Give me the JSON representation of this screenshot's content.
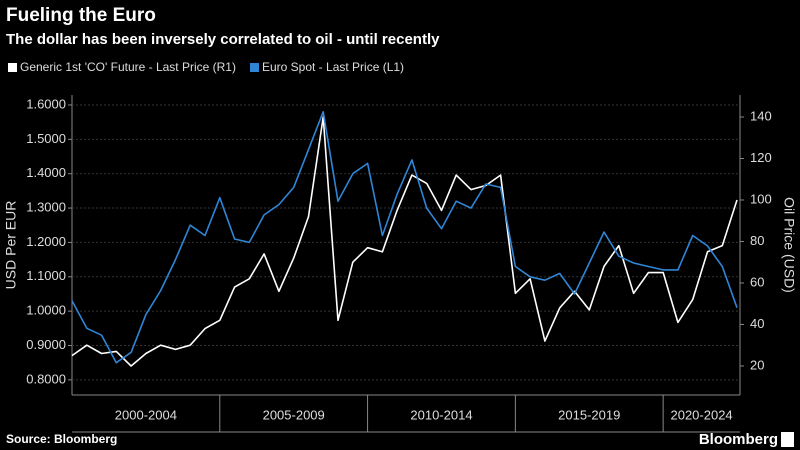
{
  "chart_data": {
    "type": "line",
    "title": "Fueling the Euro",
    "subtitle": "The dollar has been inversely correlated to oil - until recently",
    "y_label": "USD Per EUR",
    "y2_label": "Oil Price (USD)",
    "source": "Source: Bloomberg",
    "brand": "Bloomberg",
    "x": [
      2000.0,
      2000.5,
      2001.0,
      2001.5,
      2002.0,
      2002.5,
      2003.0,
      2003.5,
      2004.0,
      2004.5,
      2005.0,
      2005.5,
      2006.0,
      2006.5,
      2007.0,
      2007.5,
      2008.0,
      2008.5,
      2009.0,
      2009.5,
      2010.0,
      2010.5,
      2011.0,
      2011.5,
      2012.0,
      2012.5,
      2013.0,
      2013.5,
      2014.0,
      2014.5,
      2015.0,
      2015.5,
      2016.0,
      2016.5,
      2017.0,
      2017.5,
      2018.0,
      2018.5,
      2019.0,
      2019.5,
      2020.0,
      2020.5,
      2021.0,
      2021.5,
      2022.0,
      2022.5
    ],
    "xlim": [
      2000,
      2022.6
    ],
    "xticks": [
      {
        "value": 2000,
        "label": "2000-2004"
      },
      {
        "value": 2005,
        "label": "2005-2009"
      },
      {
        "value": 2010,
        "label": "2010-2014"
      },
      {
        "value": 2015,
        "label": "2015-2019"
      },
      {
        "value": 2020,
        "label": "2020-2024"
      }
    ],
    "ylim": [
      0.756,
      1.629
    ],
    "yticks": [
      {
        "value": 0.8,
        "label": "0.8000"
      },
      {
        "value": 0.9,
        "label": "0.9000"
      },
      {
        "value": 1.0,
        "label": "1.0000"
      },
      {
        "value": 1.1,
        "label": "1.1000"
      },
      {
        "value": 1.2,
        "label": "1.2000"
      },
      {
        "value": 1.3,
        "label": "1.3000"
      },
      {
        "value": 1.4,
        "label": "1.4000"
      },
      {
        "value": 1.5,
        "label": "1.5000"
      },
      {
        "value": 1.6,
        "label": "1.6000"
      }
    ],
    "y2lim": [
      6,
      150.6
    ],
    "y2ticks": [
      20,
      40,
      60,
      80,
      100,
      120,
      140
    ],
    "grid": true,
    "series": [
      {
        "name": "Generic 1st 'CO' Future - Last Price (R1)",
        "color": "#ffffff",
        "axis": "y2",
        "values": [
          25,
          30,
          26,
          27,
          20,
          26,
          30,
          28,
          30,
          38,
          42,
          58,
          62,
          74,
          56,
          72,
          92,
          140,
          42,
          70,
          77,
          75,
          95,
          112,
          108,
          95,
          112,
          105,
          107,
          112,
          55,
          62,
          32,
          48,
          56,
          47,
          68,
          78,
          55,
          65,
          65,
          41,
          52,
          75,
          78,
          100
        ]
      },
      {
        "name": "Euro Spot - Last Price (L1)",
        "color": "#2f86d6",
        "values": [
          1.03,
          0.95,
          0.93,
          0.85,
          0.88,
          0.99,
          1.06,
          1.15,
          1.25,
          1.22,
          1.33,
          1.21,
          1.2,
          1.28,
          1.31,
          1.36,
          1.47,
          1.58,
          1.32,
          1.4,
          1.43,
          1.22,
          1.34,
          1.44,
          1.3,
          1.24,
          1.32,
          1.3,
          1.37,
          1.36,
          1.13,
          1.1,
          1.09,
          1.11,
          1.05,
          1.14,
          1.23,
          1.16,
          1.14,
          1.13,
          1.12,
          1.12,
          1.22,
          1.19,
          1.13,
          1.01
        ]
      }
    ]
  }
}
